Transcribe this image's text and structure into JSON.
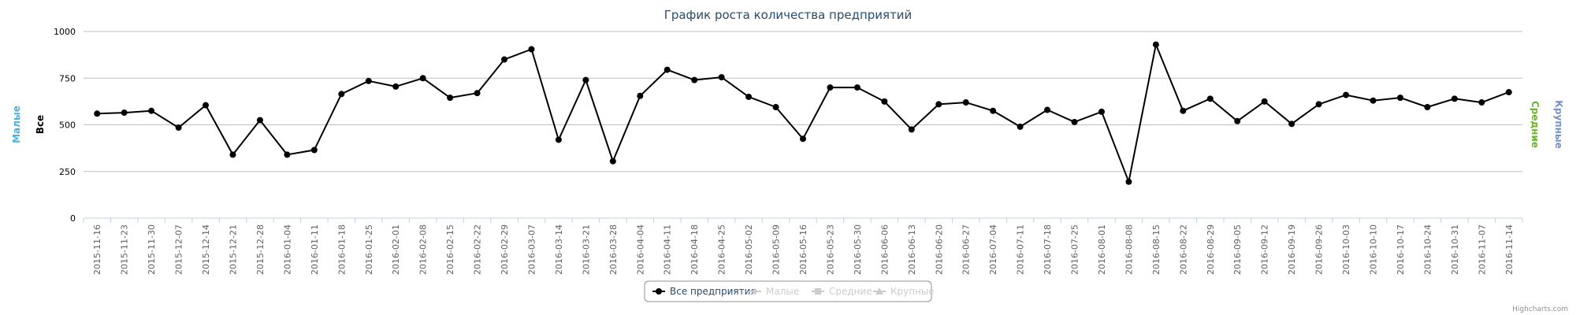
{
  "chart_data": {
    "type": "line",
    "title": "График роста количества предприятий",
    "y_axes": [
      {
        "label": "Малые",
        "color": "#4fb1d6",
        "side": "left"
      },
      {
        "label": "Все",
        "color": "#000000",
        "side": "left"
      },
      {
        "label": "Средние",
        "color": "#6bb42a",
        "side": "right"
      },
      {
        "label": "Крупные",
        "color": "#7791c8",
        "side": "right"
      }
    ],
    "ylim": [
      0,
      1000
    ],
    "yticks": [
      0,
      250,
      500,
      750,
      1000
    ],
    "grid": true,
    "x": [
      "2015-11-16",
      "2015-11-23",
      "2015-11-30",
      "2015-12-07",
      "2015-12-14",
      "2015-12-21",
      "2015-12-28",
      "2016-01-04",
      "2016-01-11",
      "2016-01-18",
      "2016-01-25",
      "2016-02-01",
      "2016-02-08",
      "2016-02-15",
      "2016-02-22",
      "2016-02-29",
      "2016-03-07",
      "2016-03-14",
      "2016-03-21",
      "2016-03-28",
      "2016-04-04",
      "2016-04-11",
      "2016-04-18",
      "2016-04-25",
      "2016-05-02",
      "2016-05-09",
      "2016-05-16",
      "2016-05-23",
      "2016-05-30",
      "2016-06-06",
      "2016-06-13",
      "2016-06-20",
      "2016-06-27",
      "2016-07-04",
      "2016-07-11",
      "2016-07-18",
      "2016-07-25",
      "2016-08-01",
      "2016-08-08",
      "2016-08-15",
      "2016-08-22",
      "2016-08-29",
      "2016-09-05",
      "2016-09-12",
      "2016-09-19",
      "2016-09-26",
      "2016-10-03",
      "2016-10-10",
      "2016-10-17",
      "2016-10-24",
      "2016-10-31",
      "2016-11-07",
      "2016-11-14"
    ],
    "series": [
      {
        "name": "Все предприятия",
        "visible": true,
        "color": "#000000",
        "marker": "circle",
        "values": [
          560,
          565,
          575,
          485,
          605,
          340,
          525,
          340,
          365,
          665,
          735,
          705,
          750,
          645,
          670,
          850,
          905,
          420,
          740,
          305,
          655,
          795,
          740,
          755,
          650,
          595,
          425,
          700,
          700,
          625,
          475,
          610,
          620,
          575,
          490,
          580,
          515,
          570,
          195,
          930,
          575,
          640,
          520,
          625,
          505,
          610,
          660,
          630,
          645,
          595,
          640,
          620,
          675
        ]
      },
      {
        "name": "Малые",
        "visible": false,
        "color": "#cccccc",
        "marker": "diamond"
      },
      {
        "name": "Средние",
        "visible": false,
        "color": "#cccccc",
        "marker": "square"
      },
      {
        "name": "Крупные",
        "visible": false,
        "color": "#cccccc",
        "marker": "triangle"
      }
    ],
    "legend_position": "bottom-center",
    "credits": "Highcharts.com"
  }
}
